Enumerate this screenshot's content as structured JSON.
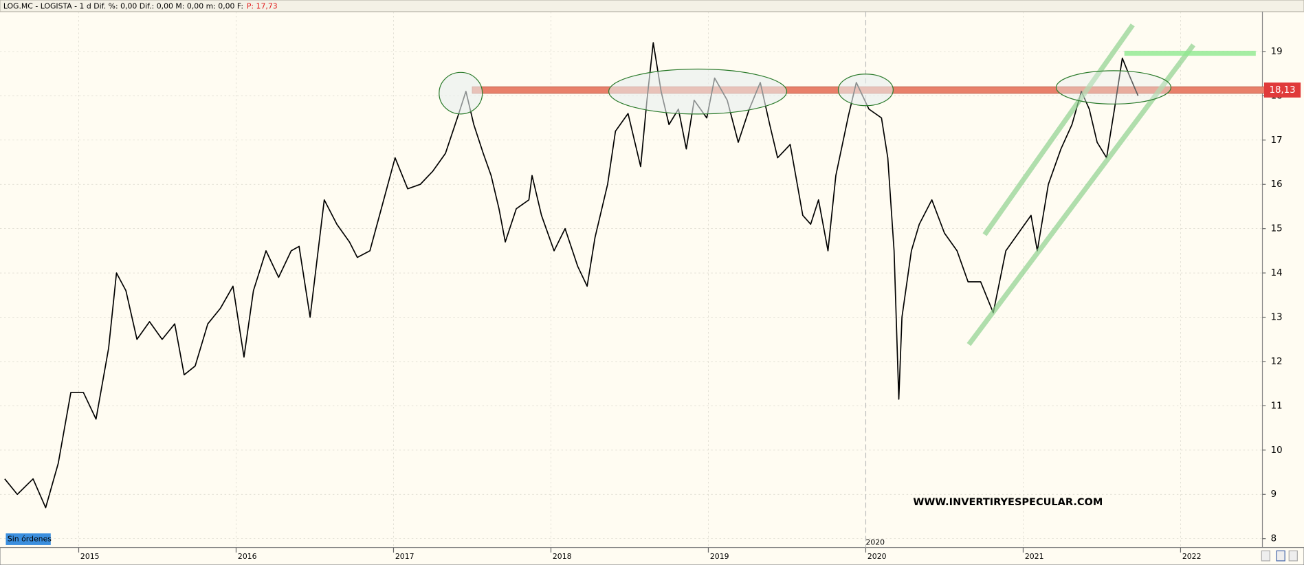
{
  "chart_data": {
    "type": "line",
    "header": "LOG.MC - LOGISTA -  1 d  Dif. %: 0,00  Dif.: 0,00  M: 0,00  m: 0,00  F:",
    "last_price": "P: 17,73",
    "watermark": "WWW.INVERTIRYESPECULAR.COM",
    "orders_button": "Sin órdenes",
    "date_marker": "2020",
    "price_label": {
      "value": 18.13,
      "label": "18,13"
    },
    "color": "#000000",
    "x": [
      2014.53,
      2014.61,
      2014.71,
      2014.79,
      2014.87,
      2014.95,
      2015.03,
      2015.11,
      2015.19,
      2015.24,
      2015.3,
      2015.37,
      2015.45,
      2015.53,
      2015.61,
      2015.67,
      2015.74,
      2015.82,
      2015.9,
      2015.98,
      2016.05,
      2016.11,
      2016.19,
      2016.27,
      2016.35,
      2016.4,
      2016.47,
      2016.56,
      2016.64,
      2016.72,
      2016.77,
      2016.85,
      2016.93,
      2017.01,
      2017.09,
      2017.17,
      2017.25,
      2017.33,
      2017.41,
      2017.46,
      2017.51,
      2017.57,
      2017.62,
      2017.67,
      2017.71,
      2017.78,
      2017.86,
      2017.88,
      2017.94,
      2018.02,
      2018.09,
      2018.17,
      2018.23,
      2018.28,
      2018.36,
      2018.41,
      2018.49,
      2018.57,
      2018.61,
      2018.65,
      2018.7,
      2018.75,
      2018.81,
      2018.86,
      2018.91,
      2018.99,
      2019.04,
      2019.12,
      2019.19,
      2019.26,
      2019.33,
      2019.39,
      2019.44,
      2019.52,
      2019.6,
      2019.65,
      2019.7,
      2019.76,
      2019.81,
      2019.89,
      2019.94,
      2020.02,
      2020.1,
      2020.14,
      2020.18,
      2020.21,
      2020.23,
      2020.29,
      2020.34,
      2020.42,
      2020.5,
      2020.58,
      2020.65,
      2020.73,
      2020.81,
      2020.89,
      2020.97,
      2021.05,
      2021.09,
      2021.16,
      2021.24,
      2021.31,
      2021.37,
      2021.42,
      2021.47,
      2021.53,
      2021.58,
      2021.63,
      2021.67,
      2021.73
    ],
    "values": [
      9.35,
      9.0,
      9.35,
      8.7,
      9.7,
      11.3,
      11.3,
      10.7,
      12.3,
      14.0,
      13.6,
      12.5,
      12.9,
      12.5,
      12.85,
      11.7,
      11.9,
      12.85,
      13.2,
      13.7,
      12.1,
      13.6,
      14.5,
      13.9,
      14.5,
      14.6,
      13.0,
      15.65,
      15.1,
      14.7,
      14.35,
      14.5,
      15.55,
      16.6,
      15.9,
      16.0,
      16.3,
      16.7,
      17.55,
      18.1,
      17.35,
      16.7,
      16.2,
      15.45,
      14.7,
      15.45,
      15.65,
      16.2,
      15.3,
      14.5,
      15.0,
      14.15,
      13.7,
      14.8,
      16.0,
      17.2,
      17.6,
      16.4,
      17.9,
      19.2,
      18.1,
      17.35,
      17.7,
      16.8,
      17.9,
      17.5,
      18.4,
      17.9,
      16.95,
      17.7,
      18.3,
      17.35,
      16.6,
      16.9,
      15.3,
      15.1,
      15.65,
      14.5,
      16.2,
      17.55,
      18.3,
      17.7,
      17.5,
      16.6,
      14.5,
      11.15,
      13.0,
      14.5,
      15.1,
      15.65,
      14.9,
      14.5,
      13.8,
      13.8,
      13.1,
      14.5,
      14.9,
      15.3,
      14.5,
      16.0,
      16.8,
      17.35,
      18.1,
      17.7,
      16.95,
      16.6,
      17.7,
      18.85,
      18.5,
      18.0
    ],
    "xlim": [
      2014.5,
      2022.52
    ],
    "xticks": [
      2015,
      2016,
      2017,
      2018,
      2019,
      2020,
      2021,
      2022
    ],
    "ylim": [
      7.8,
      19.9
    ],
    "yticks": [
      8,
      9,
      10,
      11,
      12,
      13,
      14,
      15,
      16,
      17,
      18,
      19
    ],
    "grid": true
  }
}
